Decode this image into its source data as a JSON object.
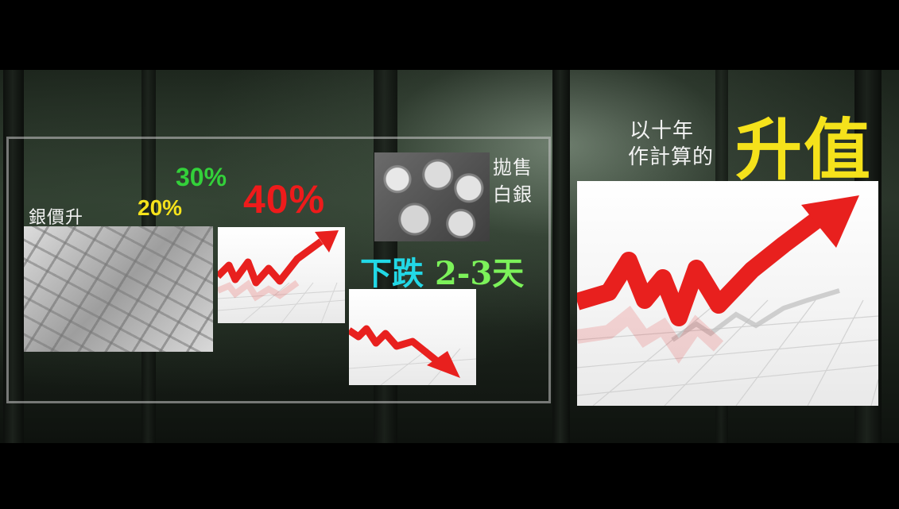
{
  "texts": {
    "silver_price_rise": "銀價升",
    "pct_20": "20%",
    "pct_30": "30%",
    "pct_40": "40%",
    "sell_silver_line1": "拋售",
    "sell_silver_line2": "白銀",
    "drop_prefix": "下跌",
    "drop_days": "2-3天",
    "ten_year_line1": "以十年",
    "ten_year_line2": "作計算的",
    "appreciation": "升值"
  },
  "colors": {
    "yellow": "#f5e21b",
    "green": "#33d13a",
    "red": "#ee1b1b",
    "cyan": "#22d8e6",
    "lime": "#7cf25a",
    "arrow_red": "#e8201e"
  },
  "icons": {
    "silver_bars": "silver-bars-photo",
    "coins": "silver-coins-photo",
    "up_arrow": "rising-arrow-chart",
    "down_arrow": "falling-arrow-chart"
  }
}
